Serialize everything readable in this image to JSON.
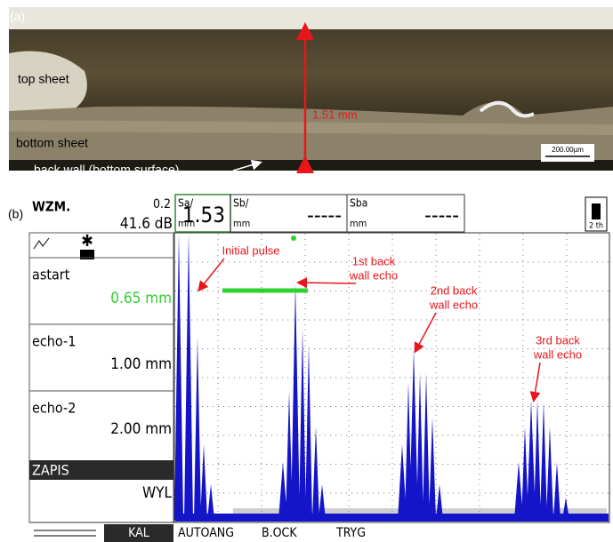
{
  "panel_a": {
    "label": "(a)",
    "annotations": {
      "top_sheet": "top sheet",
      "bottom_sheet": "bottom sheet",
      "back_wall": "back wall (bottom surface)",
      "thickness": "1.51 mm",
      "scale_bar": "200.00µm"
    }
  },
  "panel_b": {
    "label": "(b)",
    "header": {
      "mode": "WZM.",
      "gain_step": "0.2",
      "gain": "41.6 dB",
      "readouts": [
        {
          "name": "Sa/",
          "unit": "mm",
          "value": "1.53"
        },
        {
          "name": "Sb/",
          "unit": "mm",
          "value": "-----"
        },
        {
          "name": "Sba",
          "unit": "mm",
          "value": "-----"
        }
      ],
      "battery": "2 th"
    },
    "side_menu": [
      {
        "label": "astart",
        "value": "0.65 mm"
      },
      {
        "label": "echo-1",
        "value": "1.00 mm"
      },
      {
        "label": "echo-2",
        "value": "2.00 mm"
      },
      {
        "label": "ZAPIS",
        "value": "WYL"
      }
    ],
    "bottom_menu": [
      "KAL",
      "AUTOANG",
      "B.OCK",
      "TRYG"
    ],
    "annotations": [
      [
        "Initial pulse"
      ],
      [
        "1st back",
        "wall echo"
      ],
      [
        "2nd back",
        "wall echo"
      ],
      [
        "3rd back",
        "wall echo"
      ]
    ]
  }
}
